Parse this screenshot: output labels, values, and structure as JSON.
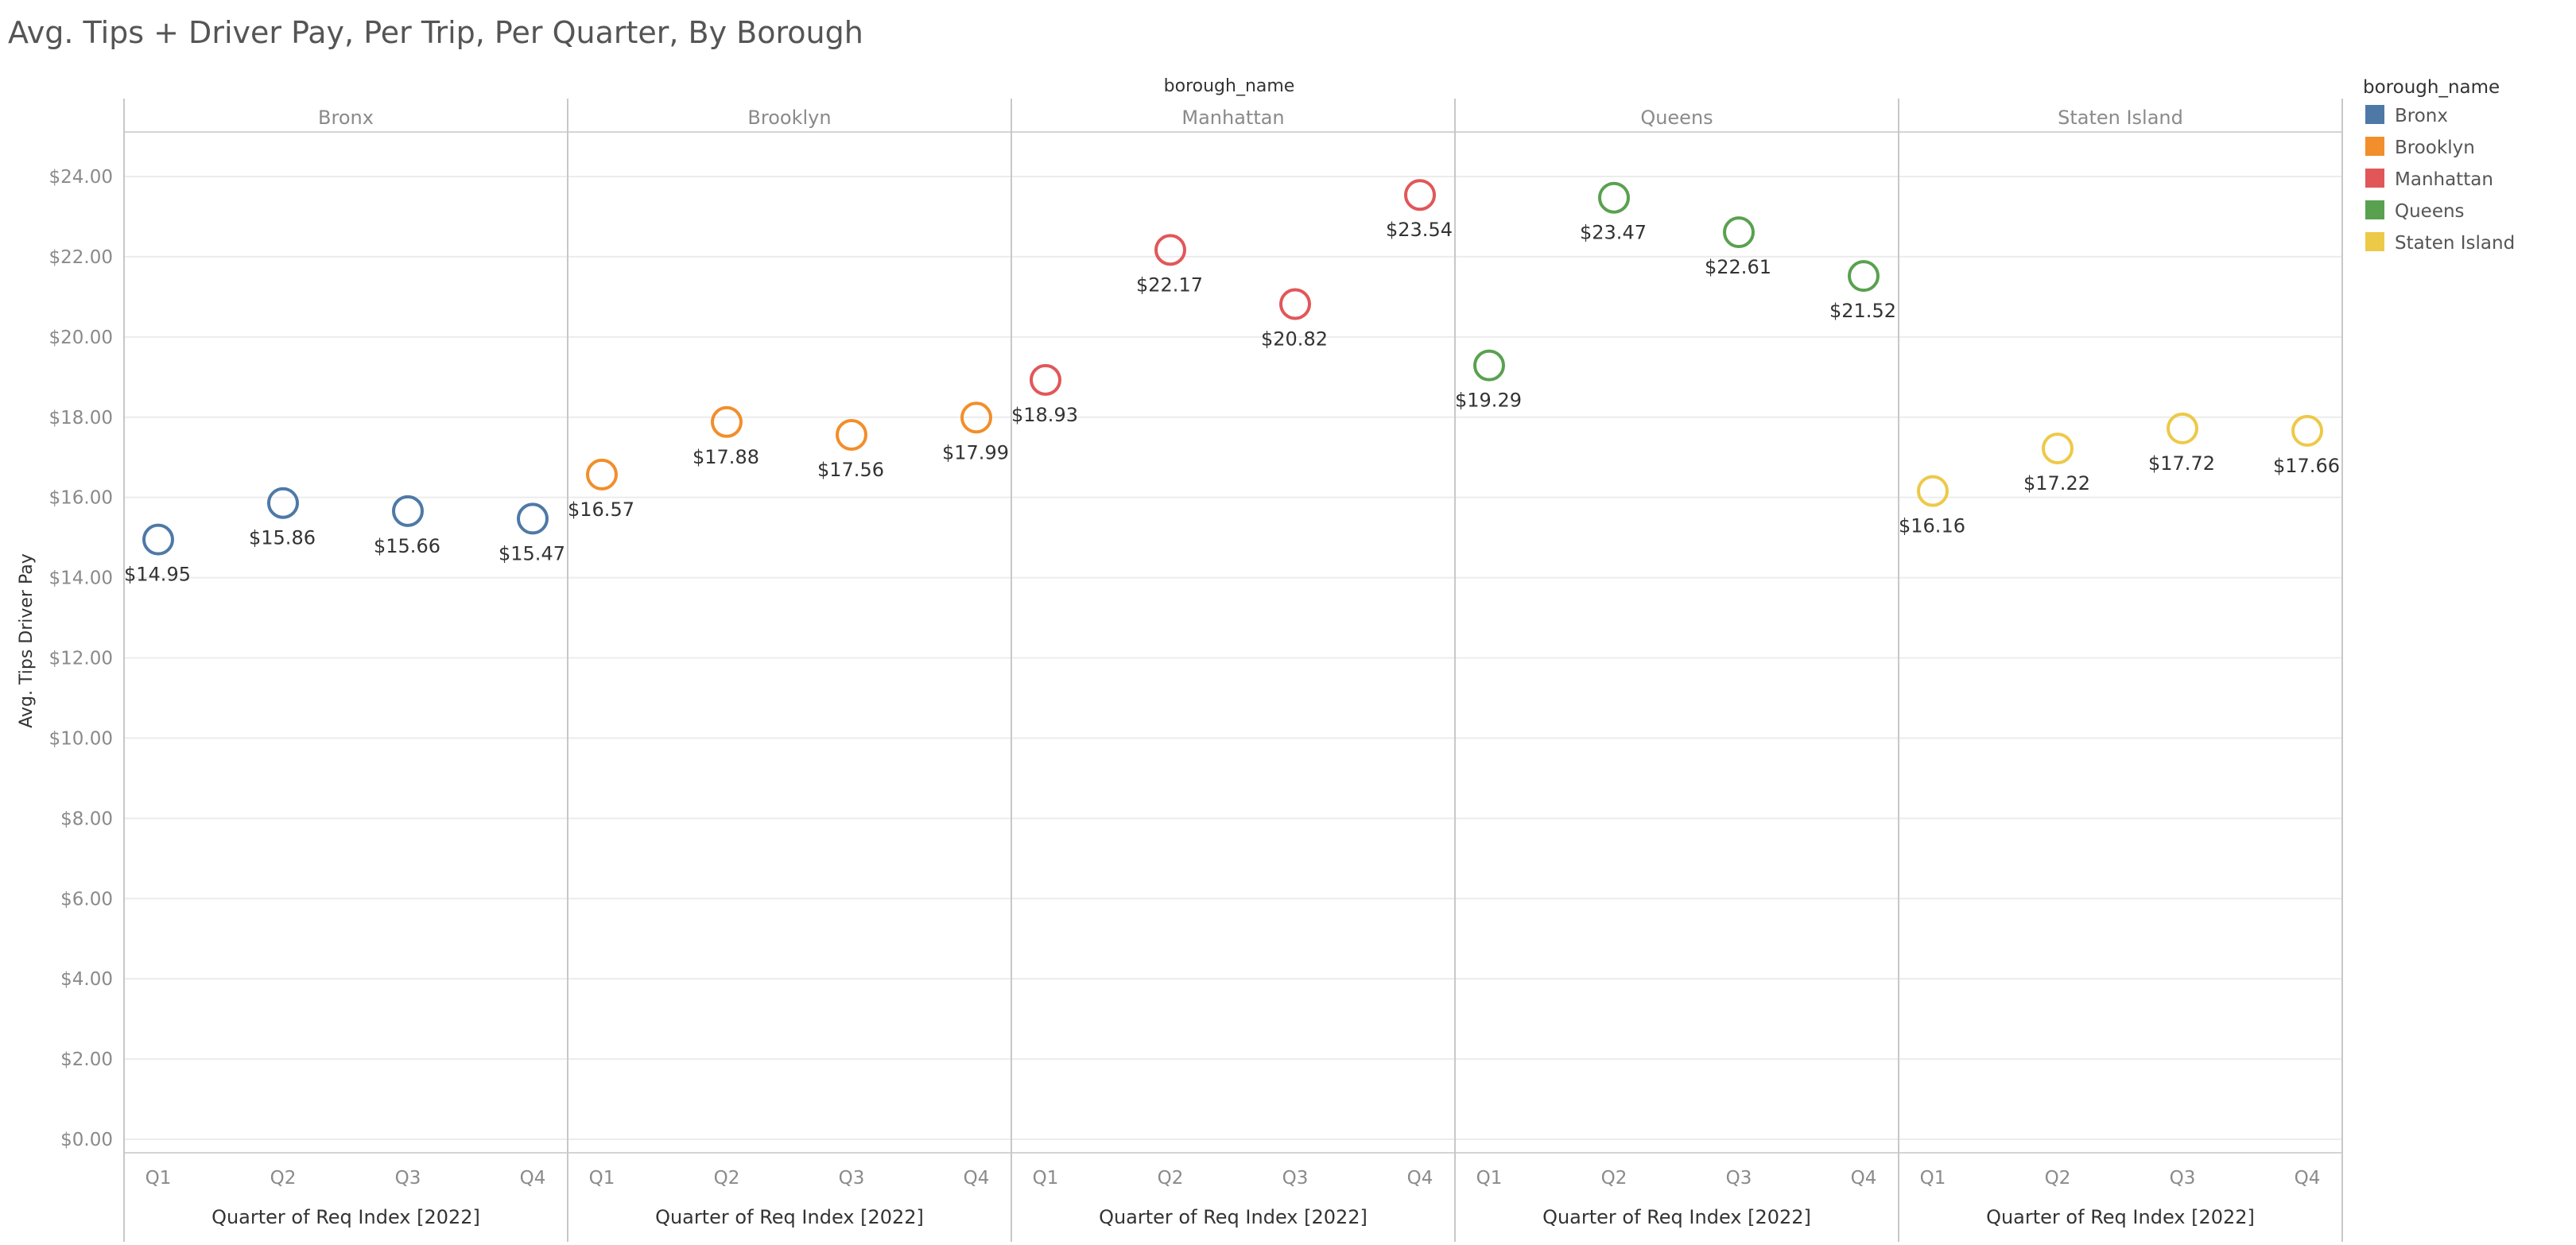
{
  "chart_data": {
    "type": "scatter",
    "title": "Avg. Tips + Driver Pay, Per Trip, Per Quarter, By Borough",
    "facet_label": "borough_name",
    "xlabel": "Quarter of Req Index [2022]",
    "ylabel": "Avg. Tips Driver Pay",
    "ylim": [
      0,
      25.5
    ],
    "y_ticks": [
      0,
      2,
      4,
      6,
      8,
      10,
      12,
      14,
      16,
      18,
      20,
      22,
      24
    ],
    "y_tick_labels": [
      "$0.00",
      "$2.00",
      "$4.00",
      "$6.00",
      "$8.00",
      "$10.00",
      "$12.00",
      "$14.00",
      "$16.00",
      "$18.00",
      "$20.00",
      "$22.00",
      "$24.00"
    ],
    "categories": [
      "Q1",
      "Q2",
      "Q3",
      "Q4"
    ],
    "gridlines": true,
    "series": [
      {
        "name": "Bronx",
        "color": "#4e79a7",
        "values": [
          14.95,
          15.86,
          15.66,
          15.47
        ],
        "labels": [
          "$14.95",
          "$15.86",
          "$15.66",
          "$15.47"
        ]
      },
      {
        "name": "Brooklyn",
        "color": "#f28e2b",
        "values": [
          16.57,
          17.88,
          17.56,
          17.99
        ],
        "labels": [
          "$16.57",
          "$17.88",
          "$17.56",
          "$17.99"
        ]
      },
      {
        "name": "Manhattan",
        "color": "#e15759",
        "values": [
          18.93,
          22.17,
          20.82,
          23.54
        ],
        "labels": [
          "$18.93",
          "$22.17",
          "$20.82",
          "$23.54"
        ]
      },
      {
        "name": "Queens",
        "color": "#59a14f",
        "values": [
          19.29,
          23.47,
          22.61,
          21.52
        ],
        "labels": [
          "$19.29",
          "$23.47",
          "$22.61",
          "$21.52"
        ]
      },
      {
        "name": "Staten Island",
        "color": "#edc948",
        "values": [
          16.16,
          17.22,
          17.72,
          17.66
        ],
        "labels": [
          "$16.16",
          "$17.22",
          "$17.72",
          "$17.66"
        ]
      }
    ],
    "legend": {
      "title": "borough_name",
      "position": "right",
      "items": [
        "Bronx",
        "Brooklyn",
        "Manhattan",
        "Queens",
        "Staten Island"
      ]
    }
  }
}
